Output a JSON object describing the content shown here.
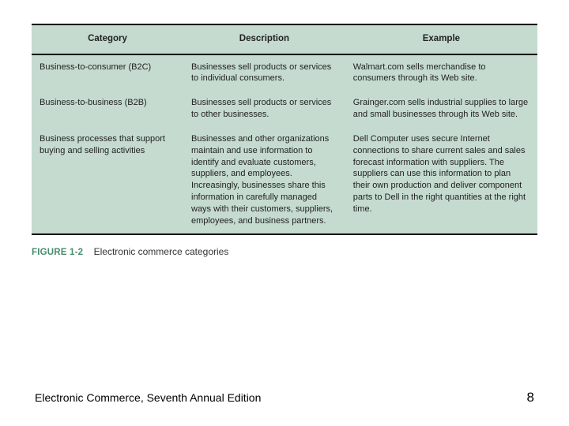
{
  "table": {
    "background_color": "#c5dbcf",
    "border_color": "#000000",
    "text_color": "#222222",
    "header_fontsize": 11.5,
    "cell_fontsize": 11,
    "columns": [
      {
        "label": "Category",
        "width_pct": 30
      },
      {
        "label": "Description",
        "width_pct": 32
      },
      {
        "label": "Example",
        "width_pct": 38
      }
    ],
    "rows": [
      {
        "category": "Business-to-consumer (B2C)",
        "description": "Businesses sell products or services to individual consumers.",
        "example": "Walmart.com sells merchandise to consumers through its Web site."
      },
      {
        "category": "Business-to-business (B2B)",
        "description": "Businesses sell products or services to other businesses.",
        "example": "Grainger.com sells industrial supplies to large and small businesses through its Web site."
      },
      {
        "category": "Business processes that support buying and selling activities",
        "description": "Businesses and other organizations maintain and use information to identify and evaluate customers, suppliers, and employees. Increasingly, businesses share this information in carefully managed ways with their customers, suppliers, employees, and business partners.",
        "example": "Dell Computer uses secure Internet connections to share current sales and sales forecast information with suppliers. The suppliers can use this information to plan their own production and deliver component parts to Dell in the right quantities at the right time."
      }
    ]
  },
  "caption": {
    "figure_label": "FIGURE 1-2",
    "figure_label_color": "#4a8b6f",
    "text": "Electronic commerce categories",
    "fontsize": 12
  },
  "footer": {
    "book_title": "Electronic Commerce, Seventh Annual Edition",
    "page_number": "8",
    "title_fontsize": 14,
    "pagenum_fontsize": 17
  }
}
